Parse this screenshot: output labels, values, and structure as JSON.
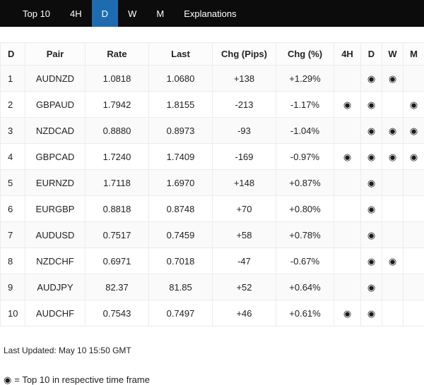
{
  "nav": {
    "items": [
      {
        "label": "Top 10",
        "active": false
      },
      {
        "label": "4H",
        "active": false
      },
      {
        "label": "D",
        "active": true
      },
      {
        "label": "W",
        "active": false
      },
      {
        "label": "M",
        "active": false
      },
      {
        "label": "Explanations",
        "active": false
      }
    ]
  },
  "icons": {
    "top10": "◉"
  },
  "table": {
    "headers": [
      "D",
      "Pair",
      "Rate",
      "Last",
      "Chg (Pips)",
      "Chg (%)",
      "4H",
      "D",
      "W",
      "M"
    ],
    "rows": [
      {
        "rank": "1",
        "pair": "AUDNZD",
        "rate": "1.0818",
        "last": "1.0680",
        "chg_pips": "+138",
        "chg_pct": "+1.29%",
        "h4": false,
        "d": true,
        "w": true,
        "m": false
      },
      {
        "rank": "2",
        "pair": "GBPAUD",
        "rate": "1.7942",
        "last": "1.8155",
        "chg_pips": "-213",
        "chg_pct": "-1.17%",
        "h4": true,
        "d": true,
        "w": false,
        "m": true
      },
      {
        "rank": "3",
        "pair": "NZDCAD",
        "rate": "0.8880",
        "last": "0.8973",
        "chg_pips": "-93",
        "chg_pct": "-1.04%",
        "h4": false,
        "d": true,
        "w": true,
        "m": true
      },
      {
        "rank": "4",
        "pair": "GBPCAD",
        "rate": "1.7240",
        "last": "1.7409",
        "chg_pips": "-169",
        "chg_pct": "-0.97%",
        "h4": true,
        "d": true,
        "w": true,
        "m": true
      },
      {
        "rank": "5",
        "pair": "EURNZD",
        "rate": "1.7118",
        "last": "1.6970",
        "chg_pips": "+148",
        "chg_pct": "+0.87%",
        "h4": false,
        "d": true,
        "w": false,
        "m": false
      },
      {
        "rank": "6",
        "pair": "EURGBP",
        "rate": "0.8818",
        "last": "0.8748",
        "chg_pips": "+70",
        "chg_pct": "+0.80%",
        "h4": false,
        "d": true,
        "w": false,
        "m": false
      },
      {
        "rank": "7",
        "pair": "AUDUSD",
        "rate": "0.7517",
        "last": "0.7459",
        "chg_pips": "+58",
        "chg_pct": "+0.78%",
        "h4": false,
        "d": true,
        "w": false,
        "m": false
      },
      {
        "rank": "8",
        "pair": "NZDCHF",
        "rate": "0.6971",
        "last": "0.7018",
        "chg_pips": "-47",
        "chg_pct": "-0.67%",
        "h4": false,
        "d": true,
        "w": true,
        "m": false
      },
      {
        "rank": "9",
        "pair": "AUDJPY",
        "rate": "82.37",
        "last": "81.85",
        "chg_pips": "+52",
        "chg_pct": "+0.64%",
        "h4": false,
        "d": true,
        "w": false,
        "m": false
      },
      {
        "rank": "10",
        "pair": "AUDCHF",
        "rate": "0.7543",
        "last": "0.7497",
        "chg_pips": "+46",
        "chg_pct": "+0.61%",
        "h4": true,
        "d": true,
        "w": false,
        "m": false
      }
    ]
  },
  "footer": {
    "last_updated": "Last Updated: May 10 15:50 GMT",
    "legend_text": "= Top 10 in respective time frame"
  },
  "colors": {
    "nav_background": "#0c0c0c",
    "active_tab": "#1d6cb1"
  }
}
